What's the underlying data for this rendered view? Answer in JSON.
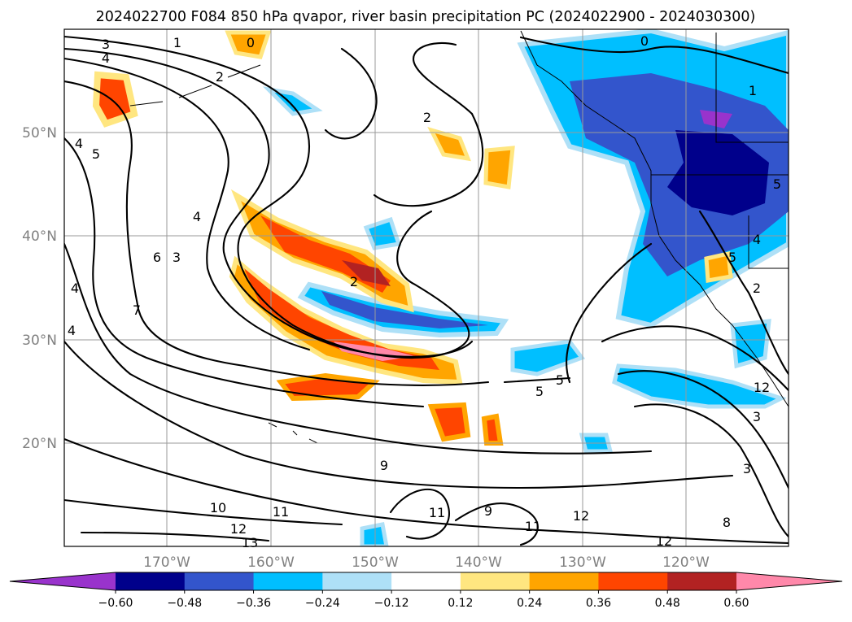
{
  "title": "2024022700 F084 850 hPa qvapor, river basin precipitation PC (2024022900 - 2024030300)",
  "map": {
    "lat_labels": [
      "50°N",
      "40°N",
      "30°N",
      "20°N"
    ],
    "lon_labels": [
      "170°W",
      "160°W",
      "150°W",
      "140°W",
      "130°W",
      "120°W"
    ],
    "contour_labels": [
      "3",
      "4",
      "1",
      "0",
      "2",
      "2",
      "0",
      "1",
      "4",
      "5",
      "5",
      "4",
      "6",
      "3",
      "7",
      "4",
      "4",
      "2",
      "4",
      "5",
      "2",
      "5",
      "5",
      "12",
      "3",
      "3",
      "9",
      "10",
      "11",
      "12",
      "13",
      "11",
      "9",
      "11",
      "12",
      "12",
      "8"
    ]
  },
  "colorbar": {
    "tick_labels": [
      "−0.60",
      "−0.48",
      "−0.36",
      "−0.24",
      "−0.12",
      "0.12",
      "0.24",
      "0.36",
      "0.48",
      "0.60"
    ],
    "colors": [
      "#9933cc",
      "#00008b",
      "#3355cc",
      "#00bfff",
      "#aee0f7",
      "#ffffff",
      "#ffe680",
      "#ffa500",
      "#ff4500",
      "#b22222",
      "#ff88aa"
    ]
  }
}
